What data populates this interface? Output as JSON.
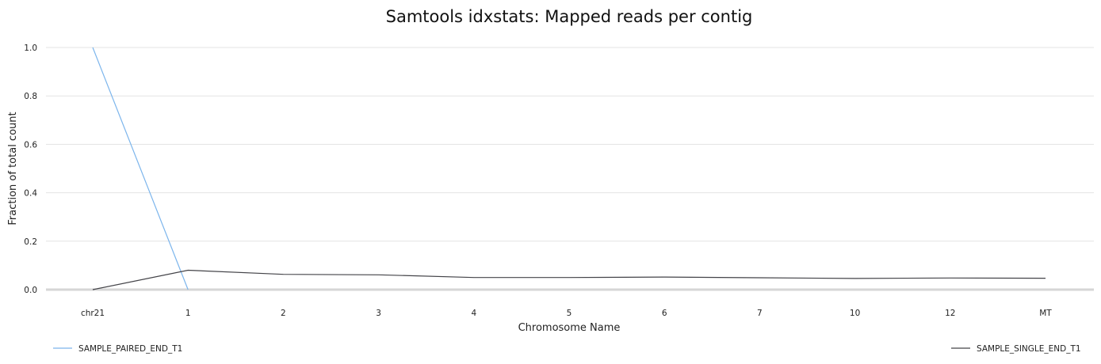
{
  "chart_data": {
    "type": "line",
    "title": "Samtools idxstats: Mapped reads per contig",
    "xlabel": "Chromosome Name",
    "ylabel": "Fraction of total count",
    "categories": [
      "chr21",
      "1",
      "2",
      "3",
      "4",
      "5",
      "6",
      "7",
      "10",
      "12",
      "MT"
    ],
    "ylim": [
      0,
      1
    ],
    "yticks": [
      "0.0",
      "0.2",
      "0.4",
      "0.6",
      "0.8",
      "1.0"
    ],
    "grid": true,
    "legend_placement": "bottom",
    "series": [
      {
        "name": "SAMPLE_PAIRED_END_T1",
        "color": "#7cb5ec",
        "values": [
          1.0,
          0.0,
          null,
          null,
          null,
          null,
          null,
          null,
          null,
          null,
          null
        ]
      },
      {
        "name": "SAMPLE_SINGLE_END_T1",
        "color": "#434348",
        "values": [
          0.0,
          0.08,
          0.063,
          0.061,
          0.05,
          0.05,
          0.052,
          0.049,
          0.046,
          0.048,
          0.047
        ]
      }
    ]
  }
}
